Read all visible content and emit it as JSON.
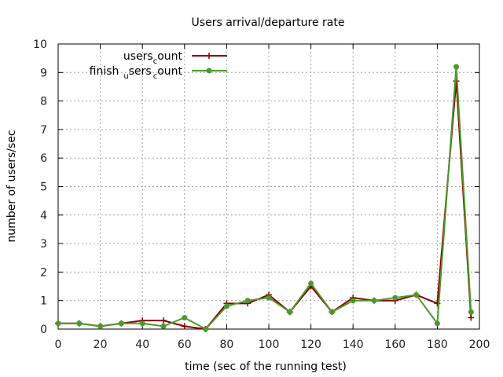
{
  "chart_data": {
    "type": "line",
    "title": "Users arrival/departure rate",
    "xlabel": "time (sec of the running test)",
    "ylabel": "number of users/sec",
    "xlim": [
      0,
      200
    ],
    "ylim": [
      0,
      10
    ],
    "xticks": [
      0,
      20,
      40,
      60,
      80,
      100,
      120,
      140,
      160,
      180,
      200
    ],
    "yticks": [
      0,
      1,
      2,
      3,
      4,
      5,
      6,
      7,
      8,
      9,
      10
    ],
    "grid": true,
    "legend_position": "top-left",
    "series": [
      {
        "name": "users_count",
        "legend_main": "users",
        "legend_sub": "c",
        "legend_tail": "ount",
        "color": "#8b0000",
        "marker": "plus",
        "x": [
          0,
          10,
          20,
          30,
          40,
          50,
          60,
          70,
          80,
          90,
          100,
          110,
          120,
          130,
          140,
          150,
          160,
          170,
          180,
          189,
          196
        ],
        "y": [
          0.2,
          0.2,
          0.1,
          0.2,
          0.3,
          0.3,
          0.1,
          0.0,
          0.9,
          0.9,
          1.2,
          0.6,
          1.5,
          0.6,
          1.1,
          1.0,
          1.0,
          1.2,
          0.9,
          8.7,
          0.4
        ]
      },
      {
        "name": "finish_users_count",
        "legend_main": "finish",
        "legend_sub": "u",
        "legend_mid": "sers",
        "legend_sub2": "c",
        "legend_tail": "ount",
        "color": "#4a9a2a",
        "marker": "dot",
        "x": [
          0,
          10,
          20,
          30,
          40,
          50,
          60,
          70,
          80,
          90,
          100,
          110,
          120,
          130,
          140,
          150,
          160,
          170,
          180,
          189,
          196
        ],
        "y": [
          0.2,
          0.2,
          0.1,
          0.2,
          0.2,
          0.1,
          0.4,
          0.0,
          0.8,
          1.0,
          1.1,
          0.6,
          1.6,
          0.6,
          1.0,
          1.0,
          1.1,
          1.2,
          0.2,
          9.2,
          0.6
        ]
      }
    ]
  }
}
